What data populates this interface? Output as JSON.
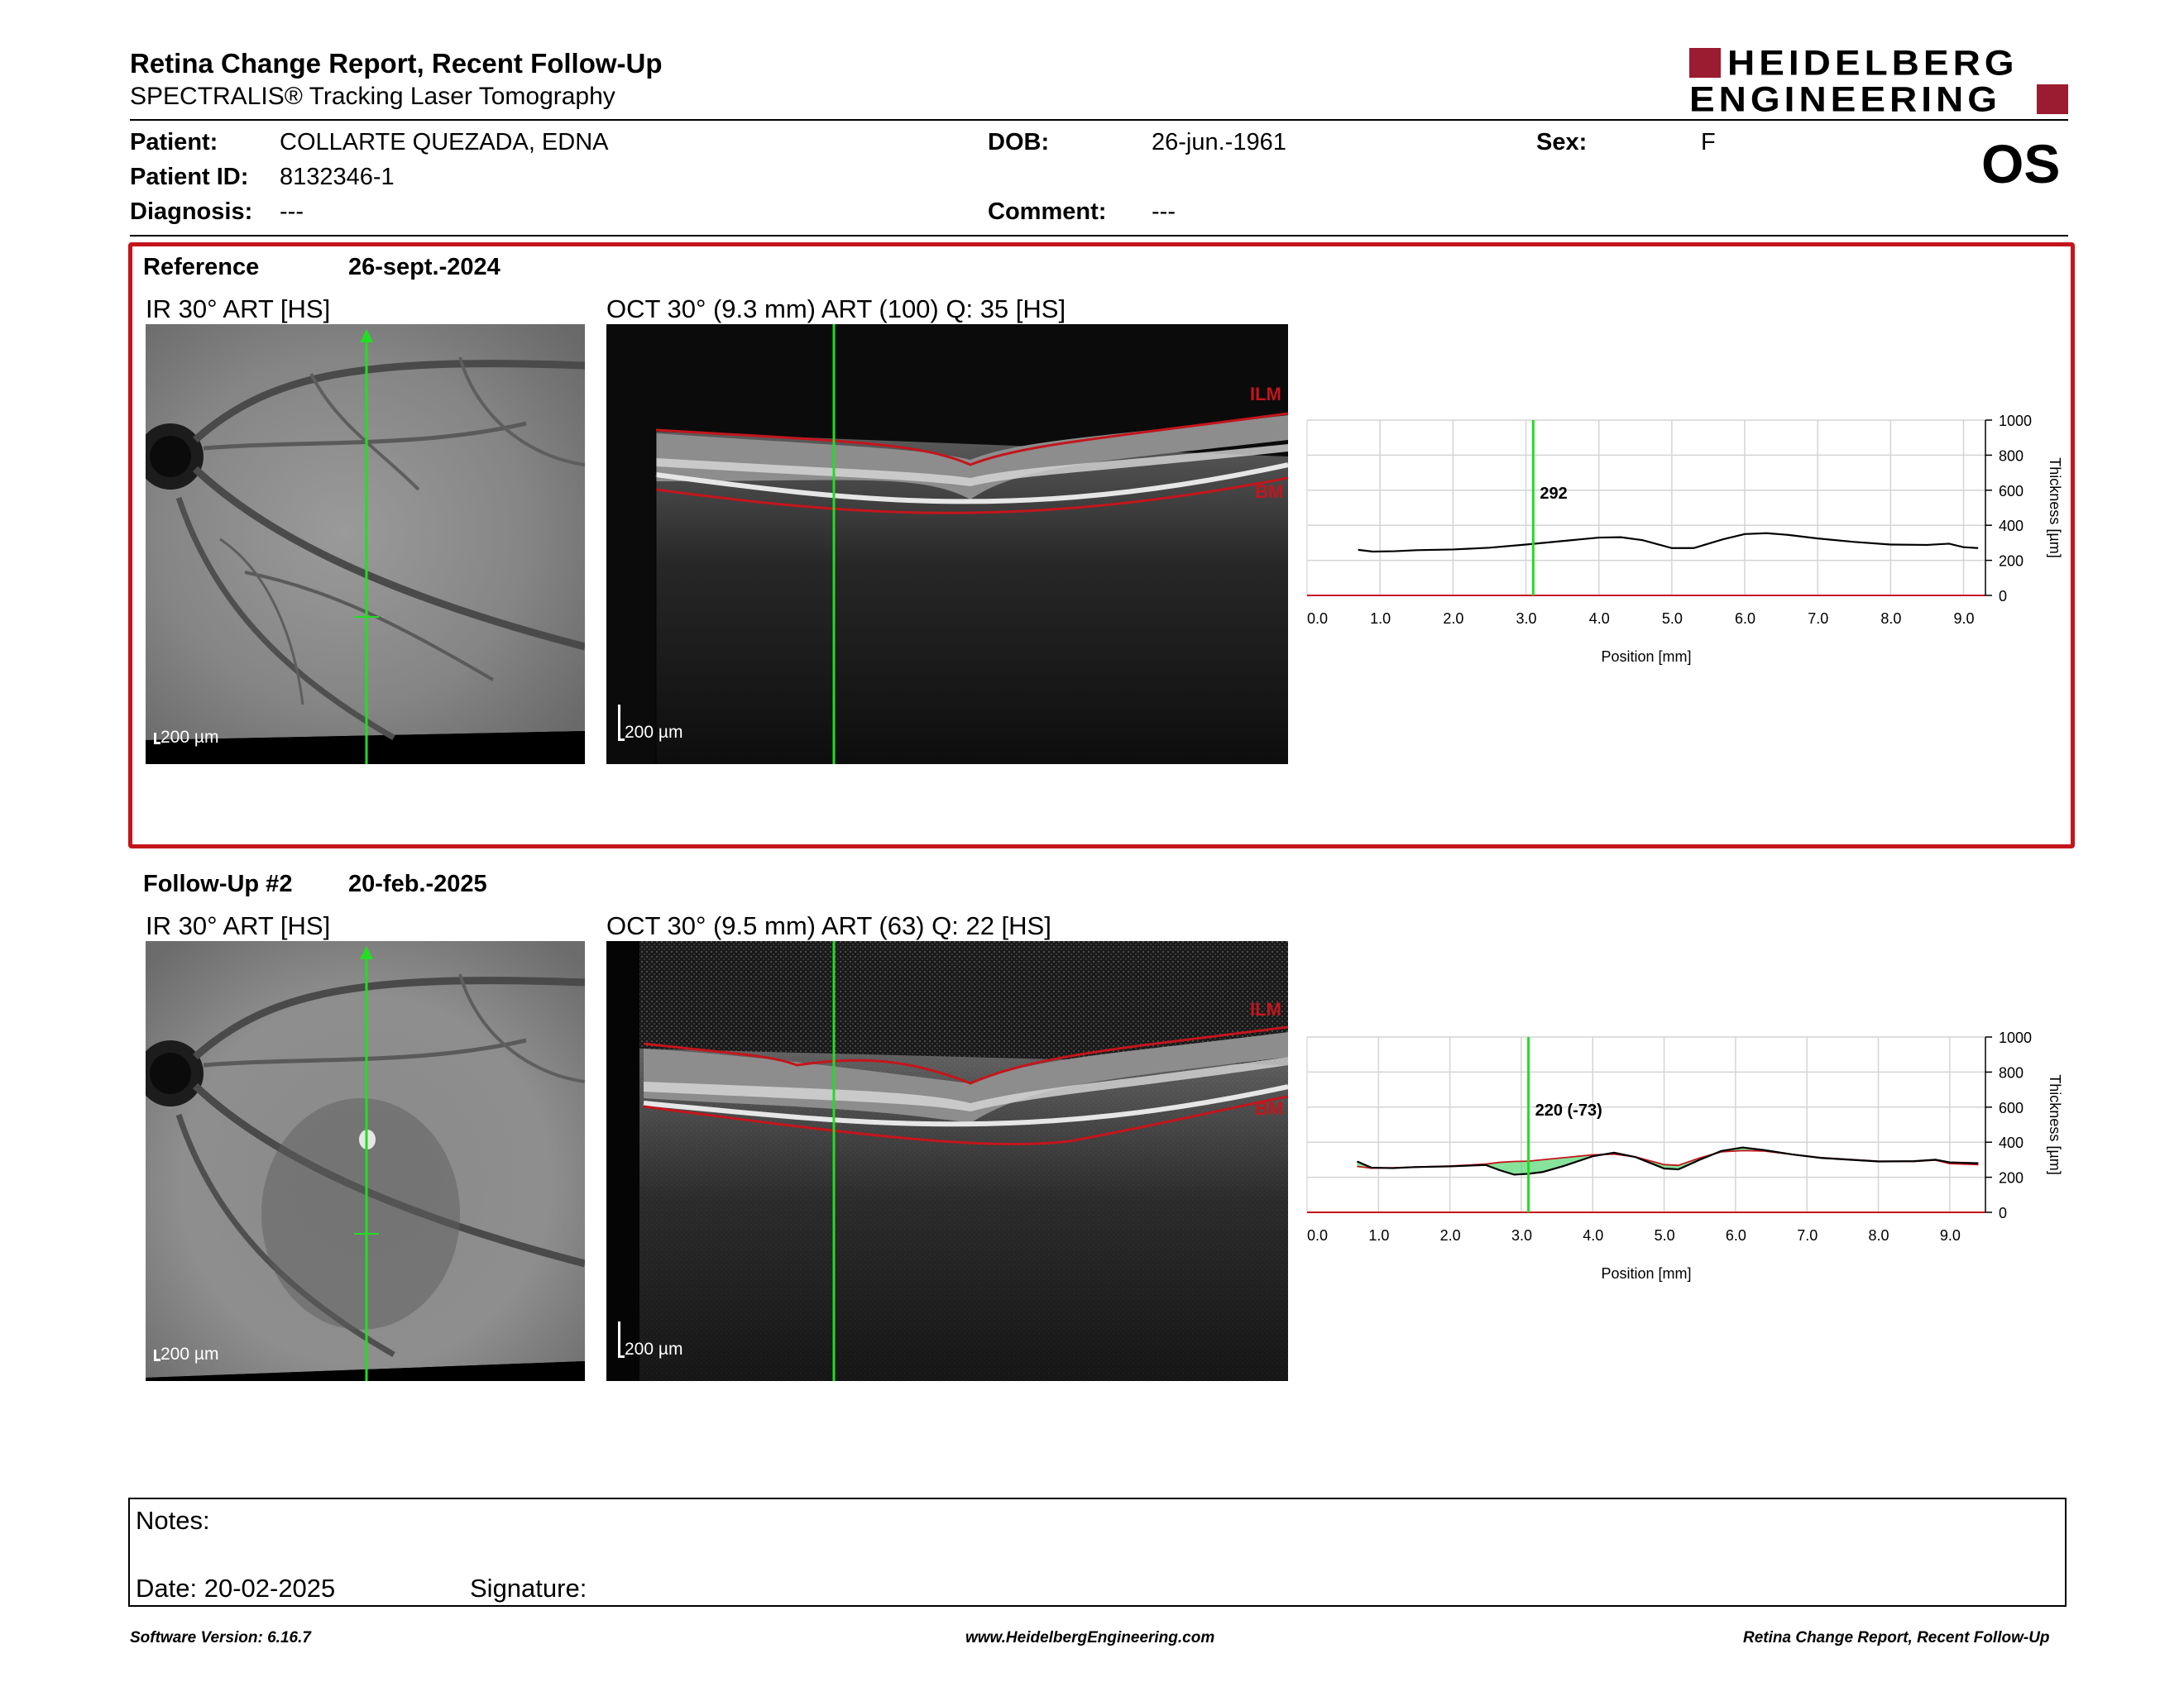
{
  "header": {
    "title": "Retina Change Report, Recent Follow-Up",
    "subtitle": "SPECTRALIS® Tracking Laser Tomography",
    "logo": {
      "line1": "HEIDELBERG",
      "line2": "ENGINEERING",
      "accent_color": "#9b1b30"
    }
  },
  "patient": {
    "patient_label": "Patient:",
    "patient_value": "COLLARTE QUEZADA, EDNA",
    "dob_label": "DOB:",
    "dob_value": "26-jun.-1961",
    "sex_label": "Sex:",
    "sex_value": "F",
    "id_label": "Patient ID:",
    "id_value": "8132346-1",
    "diagnosis_label": "Diagnosis:",
    "diagnosis_value": "---",
    "comment_label": "Comment:",
    "comment_value": "---",
    "eye": "OS"
  },
  "reference": {
    "label": "Reference",
    "date": "26-sept.-2024",
    "ir_title": "IR 30° ART [HS]",
    "oct_title": "OCT 30° (9.3 mm) ART (100) Q: 35 [HS]",
    "scale_label": "200 µm",
    "layer_top": "ILM",
    "layer_bottom": "BM",
    "box_color": "#c4151c"
  },
  "followup": {
    "label": "Follow-Up #2",
    "date": "20-feb.-2025",
    "ir_title": "IR 30° ART [HS]",
    "oct_title": "OCT 30° (9.5 mm) ART (63) Q: 22 [HS]",
    "scale_label": "200 µm",
    "layer_top": "ILM",
    "layer_bottom": "BM"
  },
  "chart_data": [
    {
      "type": "line",
      "xlabel": "Position [mm]",
      "ylabel": "Thickness [µm]",
      "xlim": [
        0,
        9.3
      ],
      "ylim": [
        0,
        1000
      ],
      "x_ticks": [
        "0.0",
        "1.0",
        "2.0",
        "3.0",
        "4.0",
        "5.0",
        "6.0",
        "7.0",
        "8.0",
        "9.0"
      ],
      "y_ticks": [
        "0",
        "200",
        "400",
        "600",
        "800",
        "1000"
      ],
      "grid": true,
      "cursor_x": 3.1,
      "cursor_label": "292",
      "cursor_color": "#22dd22",
      "series": [
        {
          "color": "#000000",
          "x": [
            0.7,
            0.9,
            1.2,
            1.5,
            2.0,
            2.5,
            3.0,
            3.5,
            4.0,
            4.3,
            4.6,
            5.0,
            5.3,
            5.7,
            6.0,
            6.3,
            6.6,
            7.0,
            7.5,
            8.0,
            8.5,
            8.8,
            9.0,
            9.2
          ],
          "y": [
            260,
            250,
            252,
            258,
            262,
            272,
            290,
            310,
            330,
            332,
            315,
            270,
            270,
            320,
            350,
            355,
            345,
            325,
            305,
            290,
            288,
            295,
            275,
            270
          ]
        }
      ]
    },
    {
      "type": "line",
      "xlabel": "Position [mm]",
      "ylabel": "Thickness [µm]",
      "xlim": [
        0,
        9.5
      ],
      "ylim": [
        0,
        1000
      ],
      "x_ticks": [
        "0.0",
        "1.0",
        "2.0",
        "3.0",
        "4.0",
        "5.0",
        "6.0",
        "7.0",
        "8.0",
        "9.0"
      ],
      "y_ticks": [
        "0",
        "200",
        "400",
        "600",
        "800",
        "1000"
      ],
      "grid": true,
      "cursor_x": 3.1,
      "cursor_label": "220 (-73)",
      "cursor_color": "#22dd22",
      "fill_color": "#5fd97a",
      "series": [
        {
          "color": "#000000",
          "x": [
            0.7,
            0.9,
            1.2,
            1.5,
            2.0,
            2.5,
            2.7,
            2.9,
            3.1,
            3.3,
            3.6,
            4.0,
            4.3,
            4.6,
            5.0,
            5.2,
            5.5,
            5.8,
            6.1,
            6.4,
            6.8,
            7.2,
            7.6,
            8.0,
            8.5,
            8.8,
            9.0,
            9.4
          ],
          "y": [
            290,
            255,
            252,
            258,
            262,
            270,
            240,
            215,
            220,
            230,
            265,
            320,
            340,
            315,
            250,
            245,
            300,
            350,
            370,
            355,
            330,
            310,
            300,
            290,
            292,
            300,
            285,
            280
          ]
        },
        {
          "color": "#c4151c",
          "x": [
            0.7,
            0.9,
            1.2,
            1.5,
            2.0,
            2.5,
            2.7,
            2.9,
            3.1,
            3.3,
            3.6,
            4.0,
            4.3,
            4.6,
            5.0,
            5.2,
            5.5,
            5.8,
            6.1,
            6.4,
            6.8,
            7.2,
            7.6,
            8.0,
            8.5,
            8.8,
            9.0,
            9.4
          ],
          "y": [
            262,
            252,
            254,
            258,
            264,
            275,
            285,
            290,
            292,
            300,
            312,
            328,
            332,
            316,
            272,
            268,
            310,
            345,
            352,
            350,
            330,
            312,
            302,
            292,
            290,
            298,
            278,
            272
          ]
        }
      ]
    }
  ],
  "notes": {
    "notes_label": "Notes:",
    "date_label": "Date: 20-02-2025",
    "signature_label": "Signature:"
  },
  "footer": {
    "left": "Software Version: 6.16.7",
    "center": "www.HeidelbergEngineering.com",
    "right": "Retina Change Report, Recent Follow-Up"
  }
}
